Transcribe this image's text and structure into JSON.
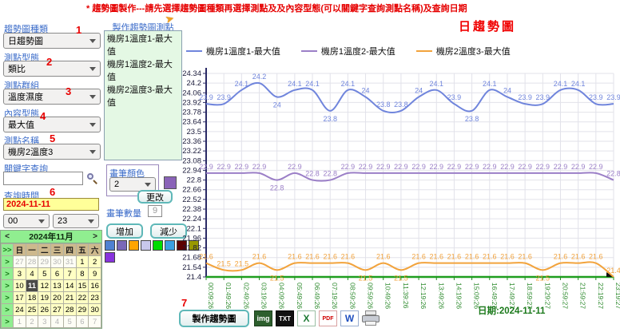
{
  "header": {
    "notice": "* 趨勢圖製作---請先選擇趨勢圖種類再選擇測點及及內容型態(可以關鍵字查詢測點名稱)及查詢日期"
  },
  "form": {
    "chart_type": {
      "label": "趨勢圖種類",
      "value": "日趨勢圖",
      "num": "1"
    },
    "point_type": {
      "label": "測點型態",
      "value": "類比",
      "num": "2"
    },
    "point_group": {
      "label": "測點群組",
      "value": "溫度濕度",
      "num": "3"
    },
    "content_type": {
      "label": "內容型態",
      "value": "最大值",
      "num": "4"
    },
    "point_name": {
      "label": "測點名稱",
      "value": "機房2溫度3",
      "num": "5"
    },
    "keyword": {
      "label": "關鍵字查詢",
      "value": "",
      "placeholder": ""
    },
    "query_time": {
      "label": "查詢時間",
      "value": "2024-11-11",
      "num": "6"
    },
    "hour_start": "00",
    "hour_end": "23"
  },
  "calendar": {
    "prev": "<",
    "next": ">",
    "title": "2024年11月",
    "corner": ">>",
    "row_marker": ">",
    "weekdays": [
      "日",
      "一",
      "二",
      "三",
      "四",
      "五",
      "六"
    ],
    "weeks": [
      [
        {
          "d": 27,
          "out": 1
        },
        {
          "d": 28,
          "out": 1
        },
        {
          "d": 29,
          "out": 1
        },
        {
          "d": 30,
          "out": 1
        },
        {
          "d": 31,
          "out": 1
        },
        {
          "d": 1
        },
        {
          "d": 2
        }
      ],
      [
        {
          "d": 3
        },
        {
          "d": 4
        },
        {
          "d": 5
        },
        {
          "d": 6
        },
        {
          "d": 7
        },
        {
          "d": 8
        },
        {
          "d": 9
        }
      ],
      [
        {
          "d": 10
        },
        {
          "d": 11,
          "sel": 1
        },
        {
          "d": 12
        },
        {
          "d": 13
        },
        {
          "d": 14
        },
        {
          "d": 15
        },
        {
          "d": 16
        }
      ],
      [
        {
          "d": 17
        },
        {
          "d": 18
        },
        {
          "d": 19
        },
        {
          "d": 20
        },
        {
          "d": 21
        },
        {
          "d": 22
        },
        {
          "d": 23
        }
      ],
      [
        {
          "d": 24
        },
        {
          "d": 25
        },
        {
          "d": 26
        },
        {
          "d": 27
        },
        {
          "d": 28
        },
        {
          "d": 29
        },
        {
          "d": 30
        }
      ],
      [
        {
          "d": 1,
          "out": 1
        },
        {
          "d": 2,
          "out": 1
        },
        {
          "d": 3,
          "out": 1
        },
        {
          "d": 4,
          "out": 1
        },
        {
          "d": 5,
          "out": 1
        },
        {
          "d": 6,
          "out": 1
        },
        {
          "d": 7,
          "out": 1
        }
      ]
    ]
  },
  "points_list": {
    "title": "製作趨勢圖測點",
    "items": [
      "機房1溫度1-最大值",
      "機房1溫度2-最大值",
      "機房2溫度3-最大值"
    ]
  },
  "pen": {
    "color_label": "畫筆顏色",
    "color_value": "2",
    "swatch_color": "#8a63b8",
    "change_label": "更改",
    "count_label": "畫筆數量",
    "count_value": "9",
    "add_label": "增加",
    "remove_label": "減少",
    "palette": [
      "#4f81d2",
      "#7a68b8",
      "#ffa500",
      "#c8c8ec",
      "#00dd00",
      "#3aa0e0",
      "#5c0000",
      "#999900",
      "#8833dd"
    ]
  },
  "actions": {
    "num": "7",
    "make_label": "製作趨勢圖",
    "icons": {
      "img": "img",
      "txt": "TXT",
      "excel": "X",
      "pdf": "PDF",
      "word": "W"
    }
  },
  "chart_data": {
    "type": "line",
    "title": "日趨勢圖",
    "caption": "日期:2024-11-11",
    "x": [
      "00:09:26",
      "01:49:26",
      "02:49:26",
      "03:19:26",
      "04:09:26",
      "05:49:26",
      "06:49:26",
      "07:19:26",
      "08:59:26",
      "09:59:26",
      "10:49:26",
      "11:39:26",
      "12:19:26",
      "13:49:26",
      "14:19:26",
      "15:09:26",
      "16:49:27",
      "17:49:27",
      "18:59:27",
      "19:29:27",
      "20:59:27",
      "21:59:27",
      "22:19:27",
      "23:19:27"
    ],
    "series": [
      {
        "name": "機房1溫度1-最大值",
        "color": "#7085dc",
        "values": [
          23.9,
          23.9,
          24.1,
          24.2,
          24.0,
          24.1,
          24.1,
          23.8,
          24.1,
          24.0,
          23.8,
          23.8,
          24.0,
          24.1,
          23.9,
          23.8,
          24.1,
          24.0,
          23.9,
          23.9,
          24.1,
          24.1,
          23.9,
          23.9
        ]
      },
      {
        "name": "機房1溫度2-最大值",
        "color": "#9b7fc7",
        "values": [
          22.9,
          22.9,
          22.9,
          22.9,
          22.8,
          22.9,
          22.8,
          22.8,
          22.9,
          22.9,
          22.9,
          22.9,
          22.9,
          22.9,
          22.9,
          22.9,
          22.9,
          22.9,
          22.9,
          22.9,
          22.9,
          22.9,
          22.9,
          22.8
        ]
      },
      {
        "name": "機房2溫度3-最大值",
        "color": "#f2a33c",
        "values": [
          21.6,
          21.5,
          21.5,
          21.6,
          21.5,
          21.6,
          21.6,
          21.6,
          21.6,
          21.5,
          21.6,
          21.5,
          21.6,
          21.6,
          21.6,
          21.6,
          21.6,
          21.6,
          21.6,
          21.5,
          21.6,
          21.6,
          21.6,
          21.4
        ]
      }
    ],
    "ylim": [
      21.4,
      24.34
    ],
    "ytick_step": 0.14,
    "grid": true,
    "legend_position": "top",
    "axis_colors": {
      "y": "#2b2b66",
      "x": "#1e9e1e"
    }
  }
}
